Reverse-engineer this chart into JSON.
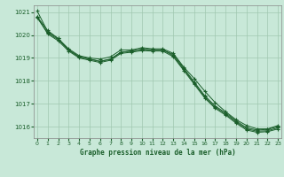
{
  "title": "Graphe pression niveau de la mer (hPa)",
  "background_color": "#c8e8d8",
  "grid_color": "#a0c8b0",
  "line_color": "#1a5e2a",
  "ylim": [
    1015.5,
    1021.3
  ],
  "xlim": [
    -0.3,
    23.3
  ],
  "yticks": [
    1016,
    1017,
    1018,
    1019,
    1020,
    1021
  ],
  "xticks": [
    0,
    1,
    2,
    3,
    4,
    5,
    6,
    7,
    8,
    9,
    10,
    11,
    12,
    13,
    14,
    15,
    16,
    17,
    18,
    19,
    20,
    21,
    22,
    23
  ],
  "series": [
    [
      1020.8,
      1020.2,
      1019.85,
      1019.4,
      1019.1,
      1019.0,
      1018.95,
      1019.05,
      1019.35,
      1019.35,
      1019.45,
      1019.4,
      1019.4,
      1019.2,
      1018.6,
      1018.1,
      1017.55,
      1017.05,
      1016.65,
      1016.3,
      1016.05,
      1015.9,
      1015.9,
      1016.05
    ],
    [
      1020.75,
      1020.1,
      1019.8,
      1019.35,
      1019.05,
      1018.95,
      1018.85,
      1018.95,
      1019.25,
      1019.3,
      1019.38,
      1019.35,
      1019.35,
      1019.15,
      1018.55,
      1017.95,
      1017.35,
      1016.9,
      1016.6,
      1016.25,
      1015.95,
      1015.85,
      1015.88,
      1016.0
    ],
    [
      1021.05,
      1020.15,
      1019.85,
      1019.35,
      1019.05,
      1018.95,
      1018.85,
      1018.95,
      1019.25,
      1019.3,
      1019.38,
      1019.35,
      1019.35,
      1019.1,
      1018.5,
      1017.9,
      1017.3,
      1016.85,
      1016.55,
      1016.2,
      1015.9,
      1015.8,
      1015.82,
      1015.95
    ],
    [
      1020.8,
      1020.05,
      1019.75,
      1019.3,
      1019.0,
      1018.9,
      1018.8,
      1018.9,
      1019.2,
      1019.25,
      1019.32,
      1019.3,
      1019.3,
      1019.05,
      1018.45,
      1017.85,
      1017.25,
      1016.8,
      1016.5,
      1016.15,
      1015.85,
      1015.75,
      1015.78,
      1015.9
    ]
  ]
}
